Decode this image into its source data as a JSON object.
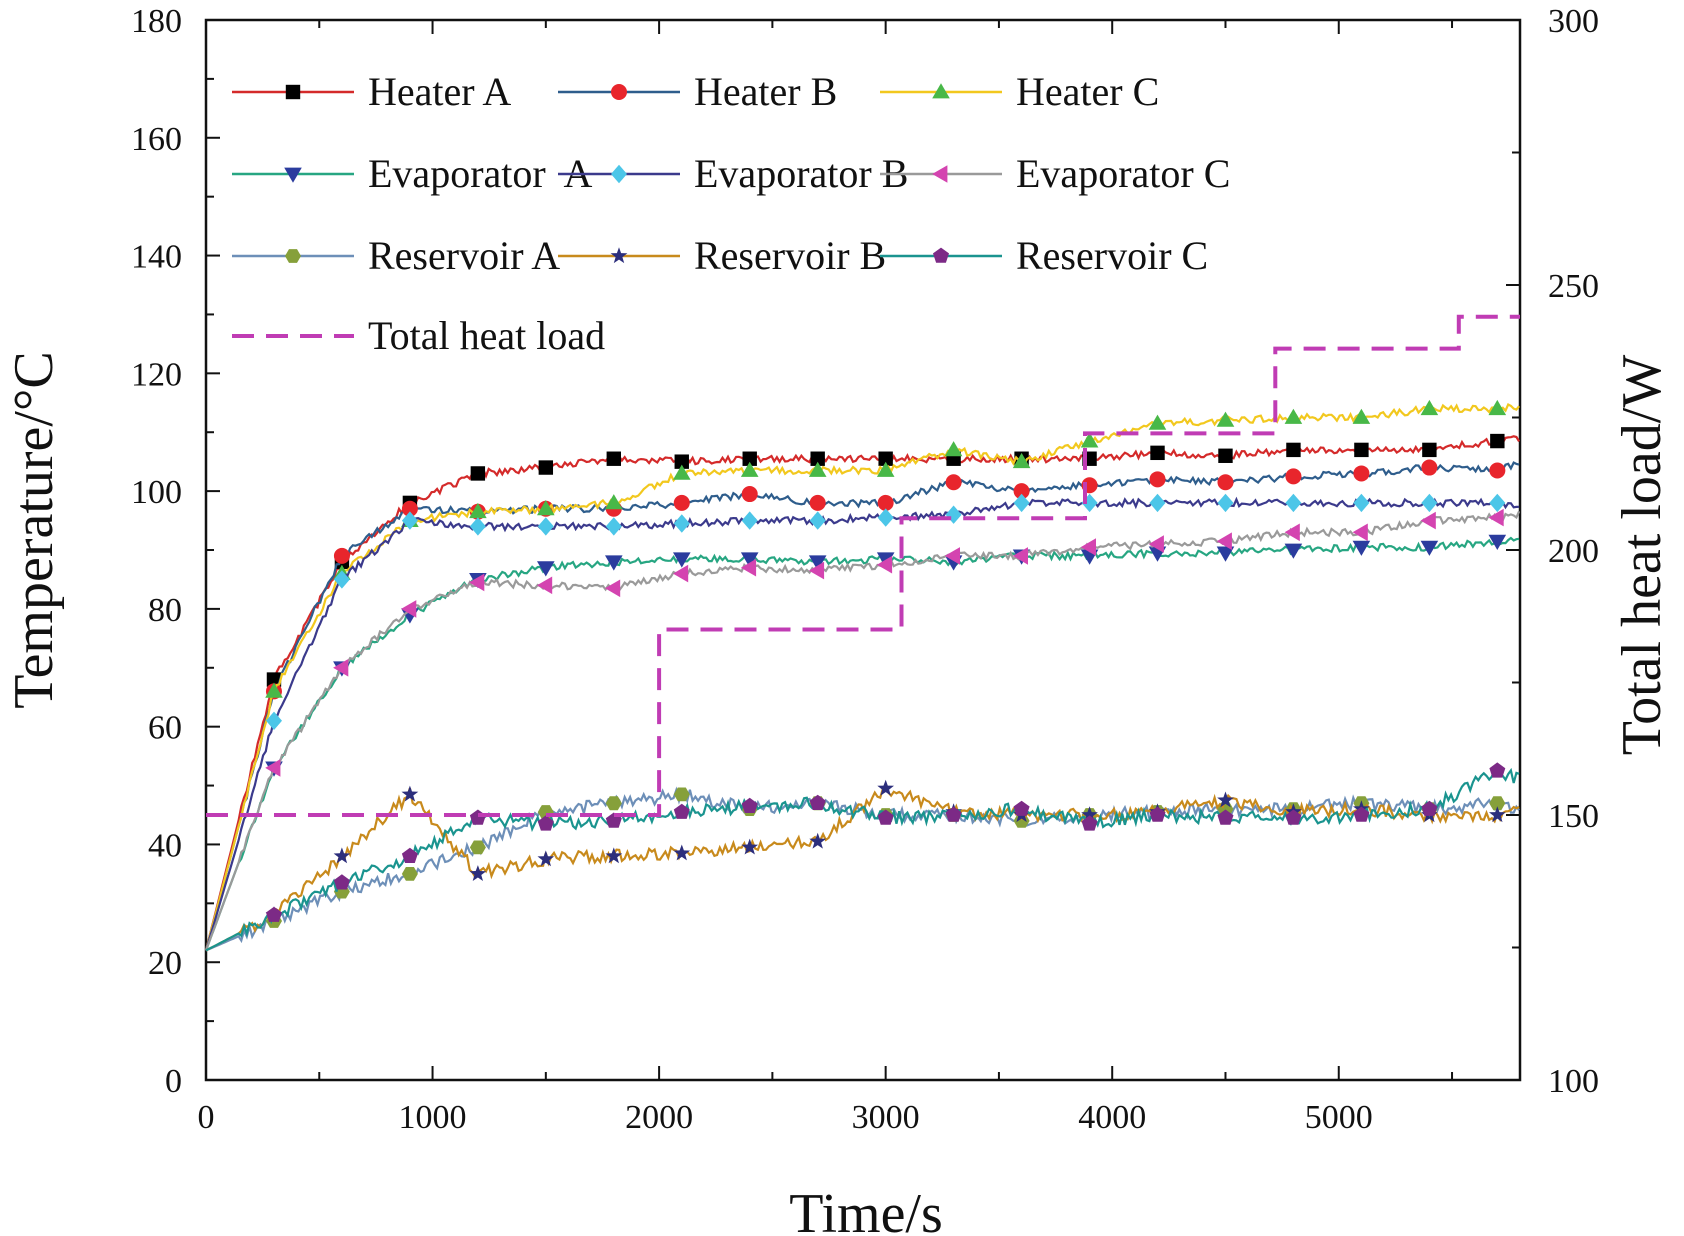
{
  "chart_data": {
    "type": "line",
    "title": "",
    "xlabel": "Time/s",
    "ylabel": "Temperature/°C",
    "y2label": "Total heat load/W",
    "xlim": [
      0,
      5800
    ],
    "ylim": [
      0,
      180
    ],
    "y2lim": [
      100,
      300
    ],
    "xticks": [
      0,
      1000,
      2000,
      3000,
      4000,
      5000
    ],
    "yticks": [
      0,
      20,
      40,
      60,
      80,
      100,
      120,
      140,
      160,
      180
    ],
    "y2ticks": [
      100,
      150,
      200,
      250,
      300
    ],
    "x": [
      0,
      300,
      600,
      900,
      1200,
      1500,
      1800,
      2100,
      2400,
      2700,
      3000,
      3300,
      3600,
      3900,
      4200,
      4500,
      4800,
      5100,
      5400,
      5700,
      5800
    ],
    "series": [
      {
        "name": "Heater A",
        "color": "#d42a2a",
        "marker": "square",
        "marker_color": "#000000",
        "values": [
          22,
          68,
          88,
          98,
          103,
          104,
          105.5,
          105,
          105.5,
          105.5,
          105.5,
          105.5,
          105.5,
          105.5,
          106.5,
          106,
          107,
          107,
          107,
          108.5,
          109
        ]
      },
      {
        "name": "Heater B",
        "color": "#2e5d8c",
        "marker": "circle",
        "marker_color": "#e8252c",
        "values": [
          22,
          66,
          89,
          97,
          96.5,
          97,
          97,
          98,
          99.5,
          98,
          98,
          101.5,
          100,
          101,
          102,
          101.5,
          102.5,
          103,
          104,
          103.5,
          105
        ]
      },
      {
        "name": "Heater C",
        "color": "#f2c81e",
        "marker": "triangle-up",
        "marker_color": "#48b848",
        "values": [
          22,
          66,
          86,
          95,
          96.5,
          97,
          98,
          103,
          103.5,
          103.5,
          103.5,
          107,
          105,
          108.5,
          111.5,
          112,
          112.5,
          112.5,
          114,
          114,
          114.5
        ]
      },
      {
        "name": "Evaporator  A",
        "color": "#27a682",
        "marker": "triangle-down",
        "marker_color": "#2b3c9e",
        "values": [
          22,
          53,
          70,
          79,
          85,
          87,
          88,
          88.5,
          88.5,
          88,
          88.5,
          88,
          89,
          89,
          89.5,
          89.5,
          90,
          90.5,
          90.5,
          91.5,
          91.5
        ]
      },
      {
        "name": "Evaporator B",
        "color": "#3b3a8c",
        "marker": "diamond",
        "marker_color": "#4cc6e8",
        "values": [
          22,
          61,
          85,
          95,
          94,
          94,
          94,
          94.5,
          95,
          95,
          95.5,
          96,
          98,
          98,
          98,
          98,
          98,
          98,
          98,
          98,
          97.5
        ]
      },
      {
        "name": "Evaporator C",
        "color": "#9a9a9a",
        "marker": "triangle-left",
        "marker_color": "#d444b0",
        "values": [
          22,
          53,
          70,
          80,
          84.5,
          84,
          83.5,
          86,
          87,
          86.5,
          87.5,
          89,
          89,
          90.5,
          91,
          91.5,
          93,
          93,
          95,
          95.5,
          96
        ]
      },
      {
        "name": "Reservoir A",
        "color": "#6d8fb8",
        "marker": "hexagon",
        "marker_color": "#86a03a",
        "values": [
          22,
          27,
          32,
          35,
          39.5,
          45.5,
          47,
          48.5,
          46,
          47,
          45,
          45,
          44,
          45,
          45.5,
          46,
          46,
          47,
          46,
          47,
          46
        ]
      },
      {
        "name": "Reservoir B",
        "color": "#c88a1c",
        "marker": "star",
        "marker_color": "#2c2e7c",
        "values": [
          22,
          28,
          38,
          48.5,
          35,
          37.5,
          38,
          38.5,
          39.5,
          40.5,
          49.5,
          45.5,
          45,
          45,
          45.5,
          47.5,
          45.5,
          46,
          45,
          45,
          46
        ]
      },
      {
        "name": "Reservoir C",
        "color": "#1a948f",
        "marker": "pentagon",
        "marker_color": "#7c2a86",
        "values": [
          22,
          28,
          33.5,
          38,
          44.5,
          43.5,
          44,
          45.5,
          46.5,
          47,
          44.5,
          45,
          46,
          43.5,
          45,
          44.5,
          44.5,
          45,
          46,
          52.5,
          51
        ]
      },
      {
        "name": "Total heat load",
        "color": "#c03cb4",
        "axis": "right",
        "dashed": true,
        "steps": [
          [
            0,
            150
          ],
          [
            2000,
            150
          ],
          [
            2000,
            185
          ],
          [
            3070,
            185
          ],
          [
            3070,
            206
          ],
          [
            3880,
            206
          ],
          [
            3880,
            222
          ],
          [
            4720,
            222
          ],
          [
            4720,
            238
          ],
          [
            5530,
            238
          ],
          [
            5530,
            244
          ],
          [
            5800,
            244
          ]
        ]
      }
    ],
    "legend": {
      "placement": "top-left",
      "columns": 3
    }
  }
}
